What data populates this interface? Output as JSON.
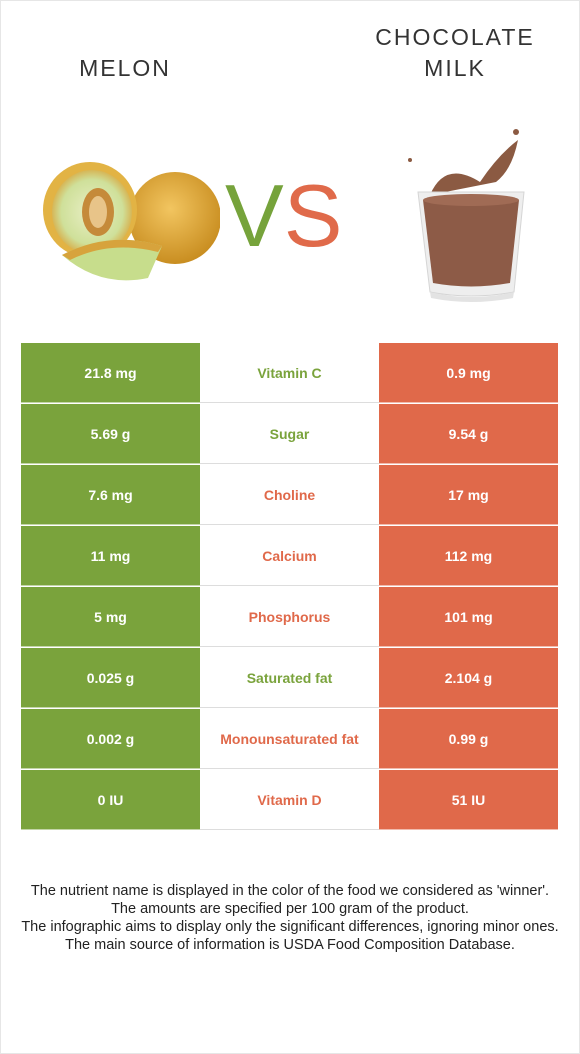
{
  "left_food": {
    "name": "MELON",
    "image_icon": "melon-image-icon"
  },
  "right_food": {
    "name": "CHOCOLATE MILK",
    "image_icon": "chocolate-milk-image-icon"
  },
  "vs": {
    "v": "V",
    "s": "S"
  },
  "colors": {
    "left_accent": "#7aa33c",
    "right_accent": "#e0694a",
    "text": "#333333"
  },
  "rows": [
    {
      "left": "21.8 mg",
      "nutrient": "Vitamin C",
      "right": "0.9 mg",
      "winner": "left"
    },
    {
      "left": "5.69 g",
      "nutrient": "Sugar",
      "right": "9.54 g",
      "winner": "left"
    },
    {
      "left": "7.6 mg",
      "nutrient": "Choline",
      "right": "17 mg",
      "winner": "right"
    },
    {
      "left": "11 mg",
      "nutrient": "Calcium",
      "right": "112 mg",
      "winner": "right"
    },
    {
      "left": "5 mg",
      "nutrient": "Phosphorus",
      "right": "101 mg",
      "winner": "right"
    },
    {
      "left": "0.025 g",
      "nutrient": "Saturated fat",
      "right": "2.104 g",
      "winner": "left"
    },
    {
      "left": "0.002 g",
      "nutrient": "Monounsaturated fat",
      "right": "0.99 g",
      "winner": "right"
    },
    {
      "left": "0 IU",
      "nutrient": "Vitamin D",
      "right": "51 IU",
      "winner": "right"
    }
  ],
  "notes": [
    "The nutrient name is displayed in the color of the food we considered as 'winner'.",
    "The amounts are specified per 100 gram of the product.",
    "The infographic aims to display only the significant differences, ignoring minor ones.",
    "The main source of information is USDA Food Composition Database."
  ]
}
